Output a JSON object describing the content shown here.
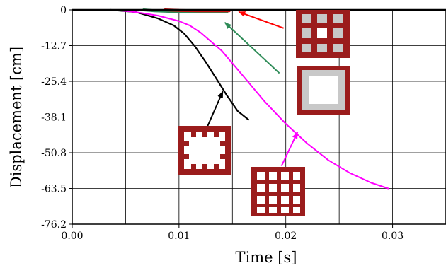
{
  "chart_data": {
    "type": "line",
    "xlabel": "Time [s]",
    "ylabel": "Displacement [cm]",
    "xlim": [
      0,
      0.035
    ],
    "ylim": [
      -76.2,
      0
    ],
    "x_ticks": [
      "0.00",
      "0.01",
      "0.02",
      "0.03"
    ],
    "x_tick_values": [
      0,
      0.01,
      0.02,
      0.03
    ],
    "x_gridlines": [
      0,
      0.005,
      0.01,
      0.015,
      0.02,
      0.025,
      0.03,
      0.035
    ],
    "y_ticks": [
      "0",
      "-12.7",
      "-25.4",
      "-38.1",
      "-50.8",
      "-63.5",
      "-76.2"
    ],
    "y_tick_values": [
      0,
      -12.7,
      -25.4,
      -38.1,
      -50.8,
      -63.5,
      -76.2
    ],
    "grid": true,
    "series": [
      {
        "color": "#000000",
        "x": [
          0.0036,
          0.006,
          0.008,
          0.0095,
          0.0105,
          0.0115,
          0.0125,
          0.0135,
          0.0145,
          0.0155,
          0.0165
        ],
        "y": [
          0,
          -0.8,
          -3.0,
          -5.5,
          -8.5,
          -13.0,
          -18.5,
          -24.5,
          -30.5,
          -36.0,
          -39.0
        ]
      },
      {
        "color": "#ff00ff",
        "x": [
          0.004,
          0.006,
          0.008,
          0.01,
          0.011,
          0.012,
          0.014,
          0.016,
          0.018,
          0.02,
          0.022,
          0.024,
          0.026,
          0.028,
          0.0296
        ],
        "y": [
          0,
          -0.8,
          -2.0,
          -4.0,
          -5.5,
          -8.0,
          -14.5,
          -23.5,
          -32.5,
          -40.5,
          -47.5,
          -53.5,
          -58.0,
          -61.5,
          -63.5
        ]
      },
      {
        "color": "#2e8b57",
        "x": [
          0.0067,
          0.0077,
          0.009,
          0.011,
          0.013,
          0.0145
        ],
        "y": [
          0,
          -0.3,
          -0.5,
          -0.6,
          -0.6,
          -0.6
        ]
      },
      {
        "color": "#cc1111",
        "x": [
          0.0087,
          0.01,
          0.012,
          0.0147
        ],
        "y": [
          0,
          -0.2,
          -0.3,
          -0.3
        ]
      }
    ],
    "annotations": [
      {
        "type": "arrow",
        "color": "#ff0000",
        "from": [
          0.0198,
          -6.5
        ],
        "to": [
          0.0156,
          -0.7
        ]
      },
      {
        "type": "arrow",
        "color": "#2e8b57",
        "from": [
          0.0194,
          -22.5
        ],
        "to": [
          0.0143,
          -4.5
        ]
      },
      {
        "type": "arrow",
        "color": "#000000",
        "from": [
          0.0126,
          -42.0
        ],
        "to": [
          0.0141,
          -29.0
        ]
      },
      {
        "type": "arrow",
        "color": "#ff00ff",
        "from": [
          0.0196,
          -55.5
        ],
        "to": [
          0.0211,
          -43.5
        ]
      }
    ],
    "legend_icons": [
      {
        "name": "section-3x3-grid-hollow-center",
        "color": "#9b1c1c",
        "placement": "top-right"
      },
      {
        "name": "section-hollow-box",
        "color": "#9b1c1c",
        "placement": "right"
      },
      {
        "name": "section-notched-box",
        "color": "#9b1c1c",
        "placement": "lower-left"
      },
      {
        "name": "section-4x4-grid",
        "color": "#9b1c1c",
        "placement": "bottom-center"
      }
    ]
  }
}
